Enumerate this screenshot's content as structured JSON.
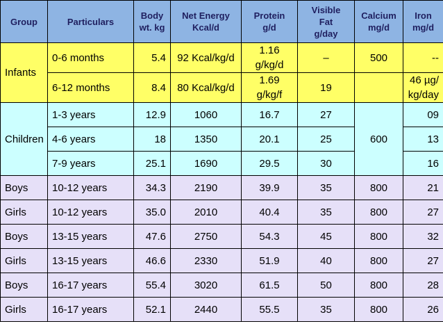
{
  "table": {
    "header": [
      "Group",
      "Particulars",
      "Body\nwt. kg",
      "Net Energy\nKcal/d",
      "Protein\ng/d",
      "Visible\nFat\ng/day",
      "Calcium\nmg/d",
      "Iron\nmg/d"
    ],
    "groups": [
      {
        "name": "Infants",
        "rows": [
          {
            "particulars": "0-6 months",
            "body_wt": "5.4",
            "energy": "92 Kcal/kg/d",
            "protein": "1.16 g/kg/d",
            "fat": "–",
            "calcium": "500",
            "iron": "--"
          },
          {
            "particulars": "6-12 months",
            "body_wt": "8.4",
            "energy": "80 Kcal/kg/d",
            "protein": "1.69 g/kg/f",
            "fat": "19",
            "calcium": "",
            "iron": "46 µg/\nkg/day"
          }
        ]
      },
      {
        "name": "Children",
        "rows": [
          {
            "particulars": "1-3 years",
            "body_wt": "12.9",
            "energy": "1060",
            "protein": "16.7",
            "fat": "27",
            "calcium": "600",
            "iron": "09"
          },
          {
            "particulars": "4-6 years",
            "body_wt": "18",
            "energy": "1350",
            "protein": "20.1",
            "fat": "25",
            "iron": "13"
          },
          {
            "particulars": "7-9 years",
            "body_wt": "25.1",
            "energy": "1690",
            "protein": "29.5",
            "fat": "30",
            "iron": "16"
          }
        ]
      },
      {
        "name": "Boys",
        "rows": [
          {
            "particulars": "10-12 years",
            "body_wt": "34.3",
            "energy": "2190",
            "protein": "39.9",
            "fat": "35",
            "calcium": "800",
            "iron": "21"
          }
        ]
      },
      {
        "name": "Girls",
        "rows": [
          {
            "particulars": "10-12 years",
            "body_wt": "35.0",
            "energy": "2010",
            "protein": "40.4",
            "fat": "35",
            "calcium": "800",
            "iron": "27"
          }
        ]
      },
      {
        "name": "Boys",
        "rows": [
          {
            "particulars": "13-15 years",
            "body_wt": "47.6",
            "energy": "2750",
            "protein": "54.3",
            "fat": "45",
            "calcium": "800",
            "iron": "32"
          }
        ]
      },
      {
        "name": "Girls",
        "rows": [
          {
            "particulars": "13-15 years",
            "body_wt": "46.6",
            "energy": "2330",
            "protein": "51.9",
            "fat": "40",
            "calcium": "800",
            "iron": "27"
          }
        ]
      },
      {
        "name": "Boys",
        "rows": [
          {
            "particulars": "16-17 years",
            "body_wt": "55.4",
            "energy": "3020",
            "protein": "61.5",
            "fat": "50",
            "calcium": "800",
            "iron": "28"
          }
        ]
      },
      {
        "name": "Girls",
        "rows": [
          {
            "particulars": "16-17 years",
            "body_wt": "52.1",
            "energy": "2440",
            "protein": "55.5",
            "fat": "35",
            "calcium": "800",
            "iron": "26"
          }
        ]
      }
    ]
  }
}
